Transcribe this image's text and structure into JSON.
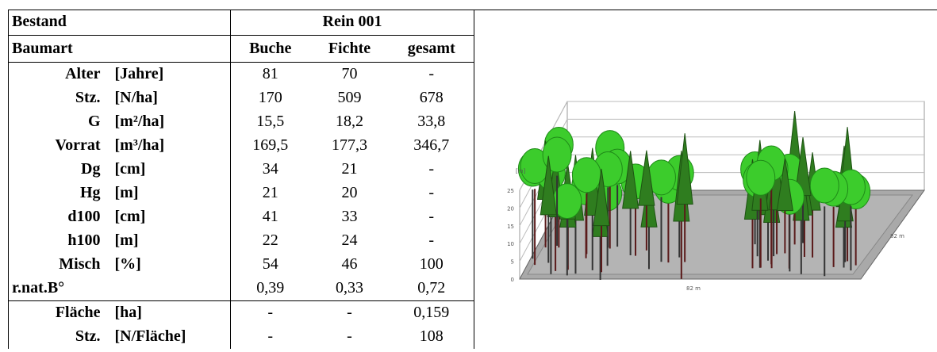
{
  "table": {
    "header": {
      "stand_label": "Bestand",
      "stand": "Rein 001",
      "species_label": "Baumart",
      "species": [
        "Buche",
        "Fichte",
        "gesamt"
      ]
    },
    "rows": [
      {
        "label": "Alter",
        "unit": "[Jahre]",
        "values": [
          "81",
          "70",
          "-"
        ]
      },
      {
        "label": "Stz.",
        "unit": "[N/ha]",
        "values": [
          "170",
          "509",
          "678"
        ]
      },
      {
        "label": "G",
        "unit": "[m²/ha]",
        "values": [
          "15,5",
          "18,2",
          "33,8"
        ]
      },
      {
        "label": "Vorrat",
        "unit": "[m³/ha]",
        "values": [
          "169,5",
          "177,3",
          "346,7"
        ]
      },
      {
        "label": "Dg",
        "unit": "[cm]",
        "values": [
          "34",
          "21",
          "-"
        ]
      },
      {
        "label": "Hg",
        "unit": "[m]",
        "values": [
          "21",
          "20",
          "-"
        ]
      },
      {
        "label": "d100",
        "unit": "[cm]",
        "values": [
          "41",
          "33",
          "-"
        ]
      },
      {
        "label": "h100",
        "unit": "[m]",
        "values": [
          "22",
          "24",
          "-"
        ]
      },
      {
        "label": "Misch",
        "unit": "[%]",
        "values": [
          "54",
          "46",
          "100"
        ]
      },
      {
        "label": "r.nat.B°",
        "values": [
          "0,39",
          "0,33",
          "0,72"
        ]
      }
    ],
    "footer_rows": [
      {
        "label": "Fläche",
        "unit": "[ha]",
        "values": [
          "-",
          "-",
          "0,159"
        ]
      },
      {
        "label": "Stz.",
        "unit": "[N/Fläche]",
        "values": [
          "-",
          "-",
          "108"
        ]
      }
    ]
  },
  "figure": {
    "y_unit": "[m]",
    "y_ticks": [
      "25",
      "20",
      "15",
      "10",
      "5",
      "0"
    ],
    "x_label": "82 m",
    "depth_label": "82 m"
  }
}
